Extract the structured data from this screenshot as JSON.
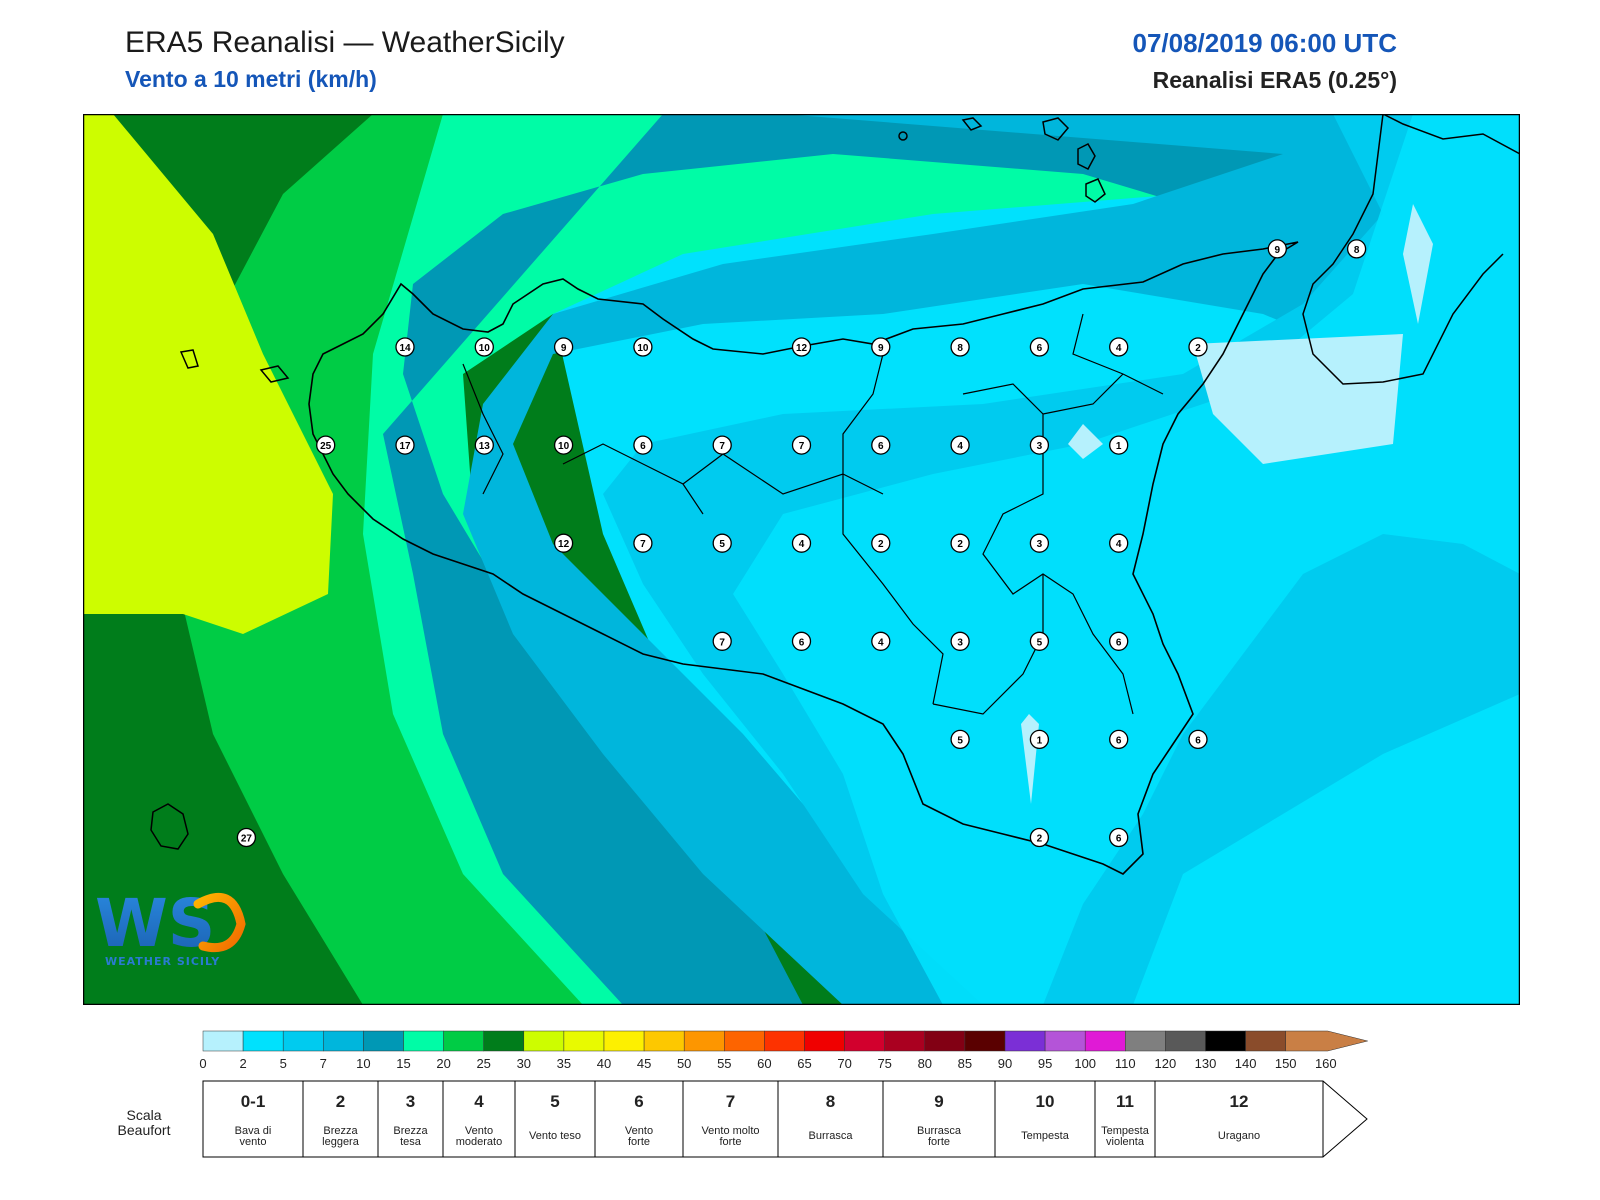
{
  "header": {
    "title": "ERA5 Reanalisi — WeatherSicily",
    "subtitle": "Vento a 10 metri (km/h)",
    "datetime": "07/08/2019 06:00 UTC",
    "source": "Reanalisi ERA5 (0.25°)"
  },
  "logo": {
    "text": "WS",
    "caption": "WEATHER SICILY"
  },
  "map": {
    "region": "Sicily",
    "variable": "wind speed at 10 m",
    "unit": "km/h",
    "station_values": [
      {
        "v": 9,
        "lon": 15.25,
        "lat": 38.25
      },
      {
        "v": 8,
        "lon": 15.5,
        "lat": 38.25
      },
      {
        "v": 14,
        "lon": 12.5,
        "lat": 38.0
      },
      {
        "v": 10,
        "lon": 12.75,
        "lat": 38.0
      },
      {
        "v": 9,
        "lon": 13.0,
        "lat": 38.0
      },
      {
        "v": 10,
        "lon": 13.25,
        "lat": 38.0
      },
      {
        "v": 12,
        "lon": 13.75,
        "lat": 38.0
      },
      {
        "v": 9,
        "lon": 14.0,
        "lat": 38.0
      },
      {
        "v": 8,
        "lon": 14.25,
        "lat": 38.0
      },
      {
        "v": 6,
        "lon": 14.5,
        "lat": 38.0
      },
      {
        "v": 4,
        "lon": 14.75,
        "lat": 38.0
      },
      {
        "v": 2,
        "lon": 15.0,
        "lat": 38.0
      },
      {
        "v": 25,
        "lon": 12.25,
        "lat": 37.75
      },
      {
        "v": 17,
        "lon": 12.5,
        "lat": 37.75
      },
      {
        "v": 13,
        "lon": 12.75,
        "lat": 37.75
      },
      {
        "v": 10,
        "lon": 13.0,
        "lat": 37.75
      },
      {
        "v": 6,
        "lon": 13.25,
        "lat": 37.75
      },
      {
        "v": 7,
        "lon": 13.5,
        "lat": 37.75
      },
      {
        "v": 7,
        "lon": 13.75,
        "lat": 37.75
      },
      {
        "v": 6,
        "lon": 14.0,
        "lat": 37.75
      },
      {
        "v": 4,
        "lon": 14.25,
        "lat": 37.75
      },
      {
        "v": 3,
        "lon": 14.5,
        "lat": 37.75
      },
      {
        "v": 1,
        "lon": 14.75,
        "lat": 37.75
      },
      {
        "v": 12,
        "lon": 13.0,
        "lat": 37.5
      },
      {
        "v": 7,
        "lon": 13.25,
        "lat": 37.5
      },
      {
        "v": 5,
        "lon": 13.5,
        "lat": 37.5
      },
      {
        "v": 4,
        "lon": 13.75,
        "lat": 37.5
      },
      {
        "v": 2,
        "lon": 14.0,
        "lat": 37.5
      },
      {
        "v": 2,
        "lon": 14.25,
        "lat": 37.5
      },
      {
        "v": 3,
        "lon": 14.5,
        "lat": 37.5
      },
      {
        "v": 4,
        "lon": 14.75,
        "lat": 37.5
      },
      {
        "v": 7,
        "lon": 13.5,
        "lat": 37.25
      },
      {
        "v": 6,
        "lon": 13.75,
        "lat": 37.25
      },
      {
        "v": 4,
        "lon": 14.0,
        "lat": 37.25
      },
      {
        "v": 3,
        "lon": 14.25,
        "lat": 37.25
      },
      {
        "v": 5,
        "lon": 14.5,
        "lat": 37.25
      },
      {
        "v": 6,
        "lon": 14.75,
        "lat": 37.25
      },
      {
        "v": 5,
        "lon": 14.25,
        "lat": 37.0
      },
      {
        "v": 1,
        "lon": 14.5,
        "lat": 37.0
      },
      {
        "v": 6,
        "lon": 14.75,
        "lat": 37.0
      },
      {
        "v": 6,
        "lon": 15.0,
        "lat": 37.0
      },
      {
        "v": 2,
        "lon": 14.5,
        "lat": 36.75
      },
      {
        "v": 6,
        "lon": 14.75,
        "lat": 36.75
      },
      {
        "v": 27,
        "lon": 12.0,
        "lat": 36.75
      }
    ]
  },
  "legend": {
    "colors": [
      "#b6f1fd",
      "#00e1fd",
      "#00cbef",
      "#00b6dc",
      "#0098b5",
      "#00fca6",
      "#00cc45",
      "#007d1b",
      "#cdfd00",
      "#e8fa00",
      "#fdf000",
      "#fdc800",
      "#fd9600",
      "#fd6400",
      "#fd3200",
      "#f00000",
      "#d2002d",
      "#aa0020",
      "#820014",
      "#5a0000",
      "#7b2fd6",
      "#b454d8",
      "#e01ad6",
      "#7f7f7f",
      "#595959",
      "#000000",
      "#8a4c2b",
      "#c97f45"
    ],
    "tick_labels": [
      "0",
      "2",
      "5",
      "7",
      "10",
      "15",
      "20",
      "25",
      "30",
      "35",
      "40",
      "45",
      "50",
      "55",
      "60",
      "65",
      "70",
      "75",
      "80",
      "85",
      "90",
      "95",
      "100",
      "110",
      "120",
      "130",
      "140",
      "150",
      "160"
    ],
    "beaufort_label": "Scala Beaufort",
    "beaufort": [
      {
        "num": "0-1",
        "desc": "Bava di vento"
      },
      {
        "num": "2",
        "desc": "Brezza leggera"
      },
      {
        "num": "3",
        "desc": "Brezza tesa"
      },
      {
        "num": "4",
        "desc": "Vento moderato"
      },
      {
        "num": "5",
        "desc": "Vento teso"
      },
      {
        "num": "6",
        "desc": "Vento forte"
      },
      {
        "num": "7",
        "desc": "Vento molto forte"
      },
      {
        "num": "8",
        "desc": "Burrasca"
      },
      {
        "num": "9",
        "desc": "Burrasca forte"
      },
      {
        "num": "10",
        "desc": "Tempesta"
      },
      {
        "num": "11",
        "desc": "Tempesta violenta"
      },
      {
        "num": "12",
        "desc": "Uragano"
      }
    ]
  }
}
